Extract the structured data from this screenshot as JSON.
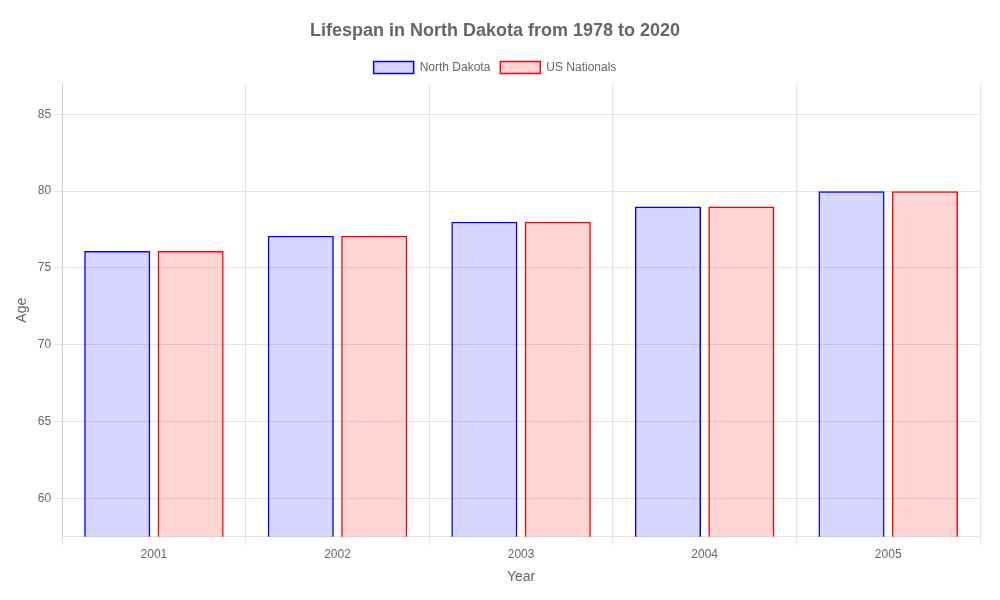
{
  "chart_data": {
    "type": "bar",
    "title": "Lifespan in North Dakota from 1978 to 2020",
    "x_label": "Year",
    "y_label": "Age",
    "categories": [
      "2001",
      "2002",
      "2003",
      "2004",
      "2005"
    ],
    "series": [
      {
        "name": "North Dakota",
        "color": "#0000ff",
        "values": [
          76.1,
          77.1,
          78.0,
          79.0,
          80.0
        ]
      },
      {
        "name": "US Nationals",
        "color": "#ff0000",
        "values": [
          76.1,
          77.1,
          78.0,
          79.0,
          80.0
        ]
      }
    ],
    "ylim": [
      57.5,
      87
    ],
    "yticks": [
      60,
      65,
      70,
      75,
      80,
      85
    ],
    "grid": true,
    "legend": "top"
  }
}
